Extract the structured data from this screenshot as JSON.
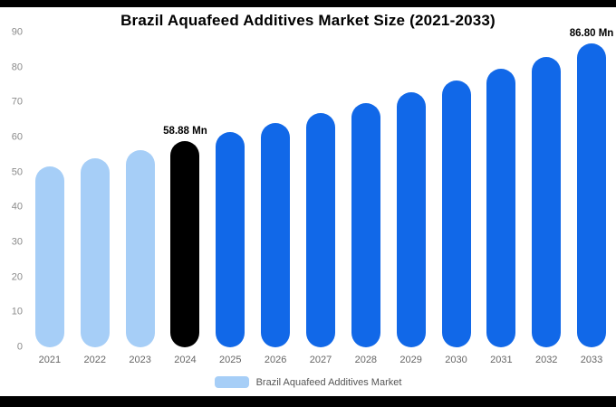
{
  "chart_data": {
    "type": "bar",
    "title": "Brazil Aquafeed Additives Market Size (2021-2033)",
    "categories": [
      "2021",
      "2022",
      "2023",
      "2024",
      "2025",
      "2026",
      "2027",
      "2028",
      "2029",
      "2030",
      "2031",
      "2032",
      "2033"
    ],
    "values": [
      51.7,
      54.0,
      56.4,
      58.88,
      61.5,
      64.2,
      67.0,
      69.9,
      73.0,
      76.2,
      79.6,
      83.1,
      86.8
    ],
    "ylim": [
      0,
      90
    ],
    "yticks": [
      0,
      10,
      20,
      30,
      40,
      50,
      60,
      70,
      80,
      90
    ],
    "bar_colors": [
      "#A6CEF7",
      "#A6CEF7",
      "#A6CEF7",
      "#000000",
      "#1168E8",
      "#1168E8",
      "#1168E8",
      "#1168E8",
      "#1168E8",
      "#1168E8",
      "#1168E8",
      "#1168E8",
      "#1168E8"
    ],
    "annotations": [
      {
        "category": "2024",
        "text": "58.88 Mn"
      },
      {
        "category": "2033",
        "text": "86.80 Mn"
      }
    ],
    "legend": [
      {
        "label": "Brazil Aquafeed Additives Market",
        "color": "#A6CEF7"
      }
    ],
    "grid": false,
    "legend_position": "bottom",
    "xlabel": "",
    "ylabel": ""
  }
}
